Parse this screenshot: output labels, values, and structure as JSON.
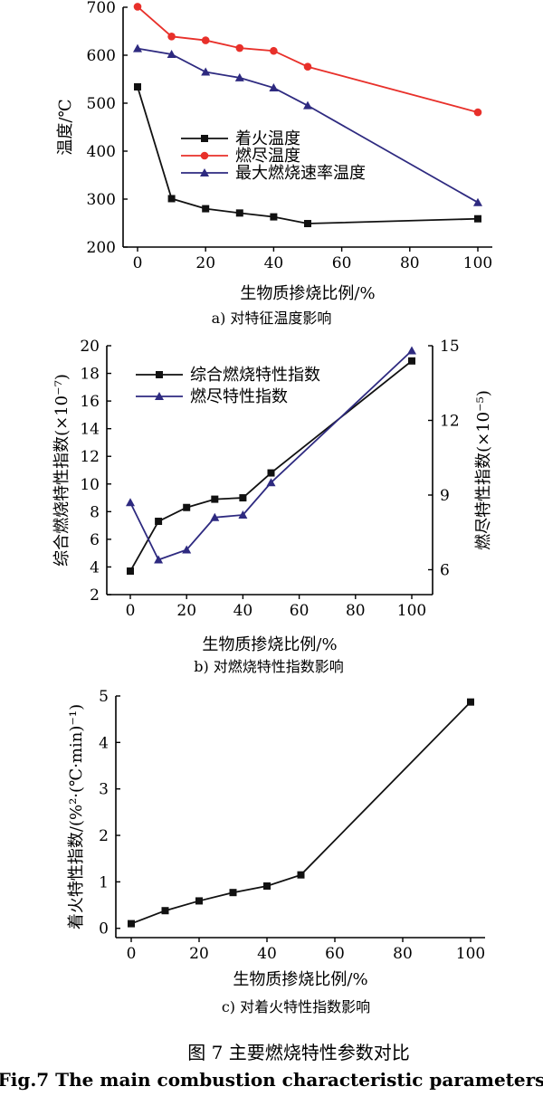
{
  "figure_caption_cn": "图 7  主要燃烧特性参数对比",
  "figure_caption_en": "Fig.7 The main combustion characteristic parameters",
  "colors": {
    "black": "#111111",
    "red": "#e8302a",
    "navy": "#2e2a80"
  },
  "chart_data": [
    {
      "type": "line",
      "subcaption": "a) 对特征温度影响",
      "xlabel": "生物质掺烧比例/%",
      "ylabel": "温度/℃",
      "x": [
        0,
        10,
        20,
        30,
        40,
        50,
        100
      ],
      "xlim": [
        0,
        100
      ],
      "xticks": [
        0,
        20,
        40,
        60,
        80,
        100
      ],
      "ylim": [
        200,
        700
      ],
      "yticks": [
        200,
        300,
        400,
        500,
        600,
        700
      ],
      "legend_position": "center-left",
      "series": [
        {
          "name": "着火温度",
          "marker": "square",
          "color": "#111111",
          "values": [
            534,
            301,
            280,
            271,
            263,
            249,
            259
          ]
        },
        {
          "name": "燃尽温度",
          "marker": "circle",
          "color": "#e8302a",
          "values": [
            701,
            639,
            631,
            615,
            609,
            576,
            481
          ]
        },
        {
          "name": "最大燃烧速率温度",
          "marker": "triangle",
          "color": "#2e2a80",
          "values": [
            614,
            602,
            565,
            553,
            532,
            495,
            293
          ]
        }
      ]
    },
    {
      "type": "line",
      "subcaption": "b) 对燃烧特性指数影响",
      "xlabel": "生物质掺烧比例/%",
      "ylabel": "综合燃烧特性指数(×10⁻⁷)",
      "ylabel_right": "燃尽特性指数(×10⁻⁵)",
      "x": [
        0,
        10,
        20,
        30,
        40,
        50,
        100
      ],
      "xlim": [
        0,
        100
      ],
      "xticks": [
        0,
        20,
        40,
        60,
        80,
        100
      ],
      "ylim": [
        2,
        20
      ],
      "yticks": [
        2,
        4,
        6,
        8,
        10,
        12,
        14,
        16,
        18,
        20
      ],
      "ylim_right": [
        5,
        15
      ],
      "yticks_right": [
        6,
        9,
        12,
        15
      ],
      "legend_position": "top-left",
      "series": [
        {
          "name": "综合燃烧特性指数",
          "marker": "square",
          "color": "#111111",
          "axis": "left",
          "values": [
            3.7,
            7.3,
            8.3,
            8.9,
            9.0,
            10.8,
            18.9
          ]
        },
        {
          "name": "燃尽特性指数",
          "marker": "triangle",
          "color": "#2e2a80",
          "axis": "right",
          "values": [
            8.7,
            6.4,
            6.8,
            8.1,
            8.2,
            9.5,
            14.8
          ]
        }
      ]
    },
    {
      "type": "line",
      "subcaption": "c) 对着火特性指数影响",
      "xlabel": "生物质掺烧比例/%",
      "ylabel": "着火特性指数/(%²·(℃·min)⁻¹)",
      "x": [
        0,
        10,
        20,
        30,
        40,
        50,
        100
      ],
      "xlim": [
        0,
        100
      ],
      "xticks": [
        0,
        20,
        40,
        60,
        80,
        100
      ],
      "ylim": [
        -0.2,
        5
      ],
      "yticks": [
        0,
        1,
        2,
        3,
        4,
        5
      ],
      "series": [
        {
          "name": "着火特性指数",
          "marker": "square",
          "color": "#111111",
          "values": [
            0.1,
            0.38,
            0.59,
            0.77,
            0.91,
            1.15,
            4.87
          ]
        }
      ]
    }
  ]
}
